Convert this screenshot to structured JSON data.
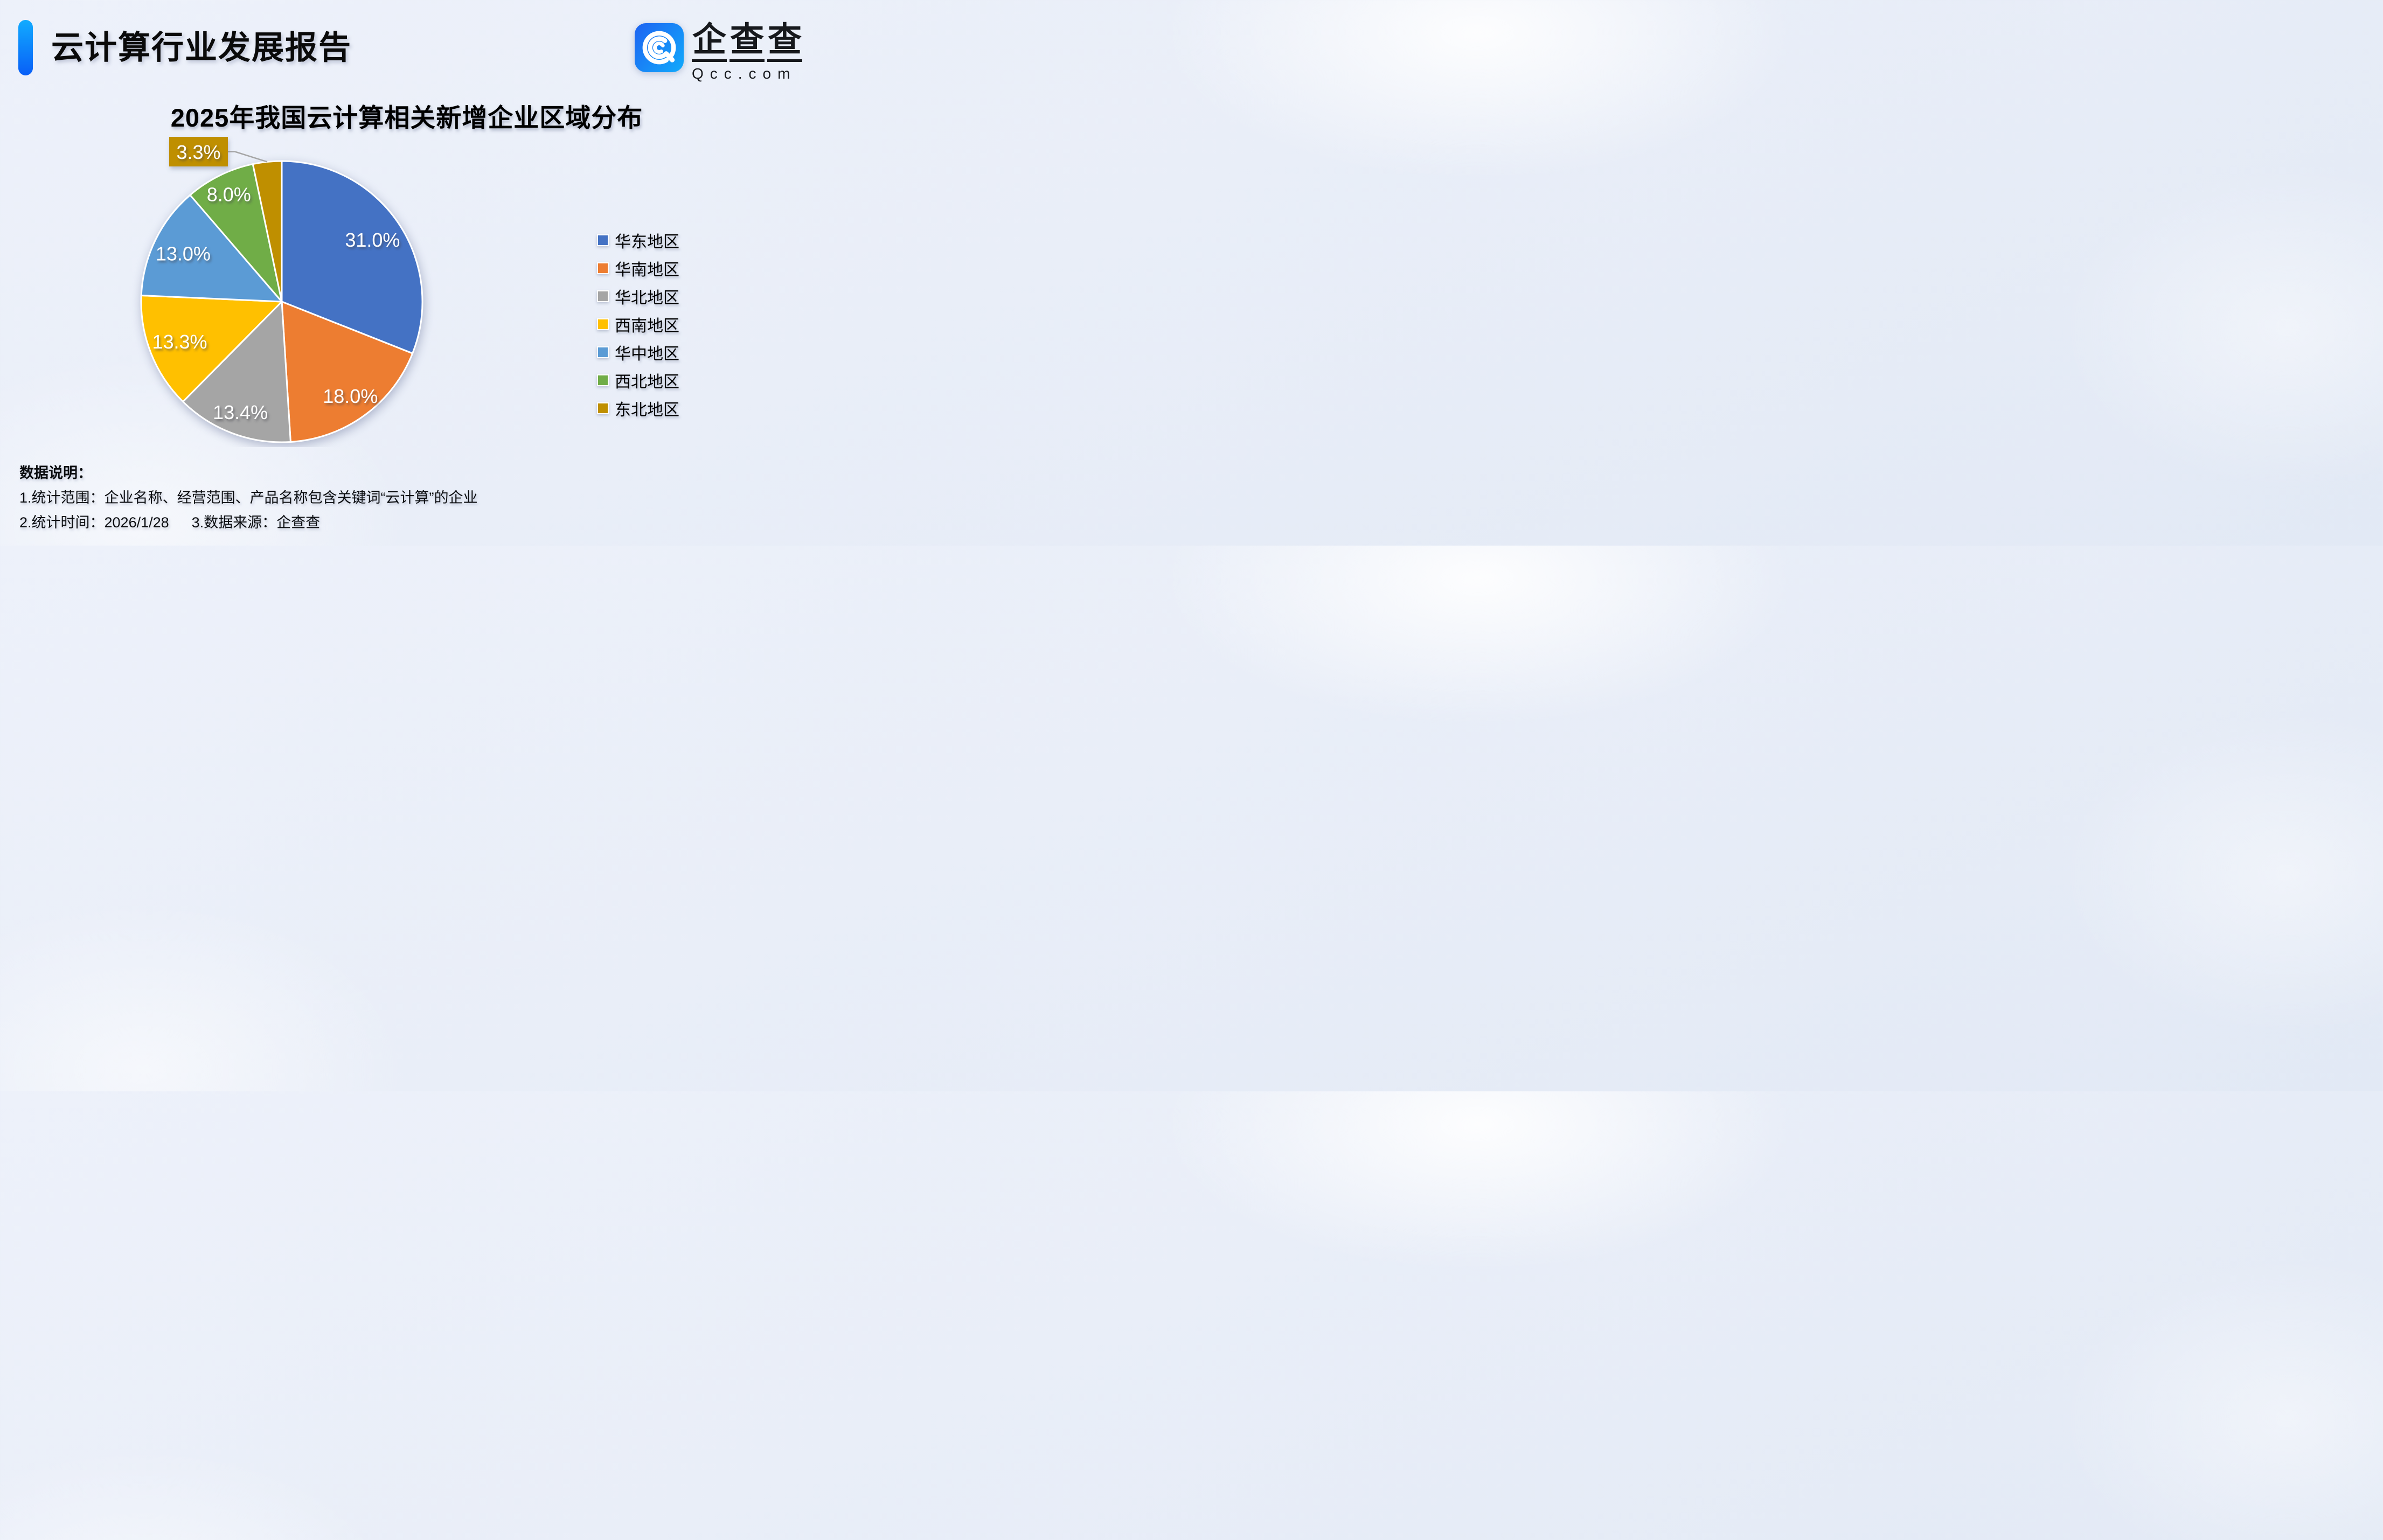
{
  "header": {
    "title": "云计算行业发展报告"
  },
  "logo": {
    "name": "企查查",
    "chars": [
      "企",
      "查",
      "查"
    ],
    "domain": "Qcc.com"
  },
  "brand": {
    "accent_bar_top": "#12ABFF",
    "accent_bar_bottom": "#085FF7",
    "logo_gradient_left": "#1D66F2",
    "logo_gradient_right": "#12A7FB",
    "logo_text_color": "#17191D"
  },
  "chart_data": {
    "type": "pie",
    "title": "2025年我国云计算相关新增企业区域分布",
    "categories": [
      "华东地区",
      "华南地区",
      "华北地区",
      "西南地区",
      "华中地区",
      "西北地区",
      "东北地区"
    ],
    "values": [
      31.0,
      18.0,
      13.4,
      13.3,
      13.0,
      8.0,
      3.3
    ],
    "labels": [
      "31.0%",
      "18.0%",
      "13.4%",
      "13.3%",
      "13.0%",
      "8.0%",
      "3.3%"
    ],
    "colors": [
      "#4472C4",
      "#ED7D31",
      "#A5A5A5",
      "#FFC000",
      "#5B9BD5",
      "#70AD47",
      "#BF8F00"
    ],
    "unit": "%",
    "start_angle_deg": 0,
    "direction": "clockwise",
    "legend_position": "right",
    "label_color": "#FFFFFF",
    "slice_border_color": "#FFFFFF",
    "leader_line_color": "#A6A6A6",
    "callout_category": "东北地区"
  },
  "notes": {
    "heading": "数据说明：",
    "scope": "1.统计范围：企业名称、经营范围、产品名称包含关键词“云计算”的企业",
    "time": "2.统计时间：2026/1/28",
    "source": "3.数据来源：企查查"
  }
}
